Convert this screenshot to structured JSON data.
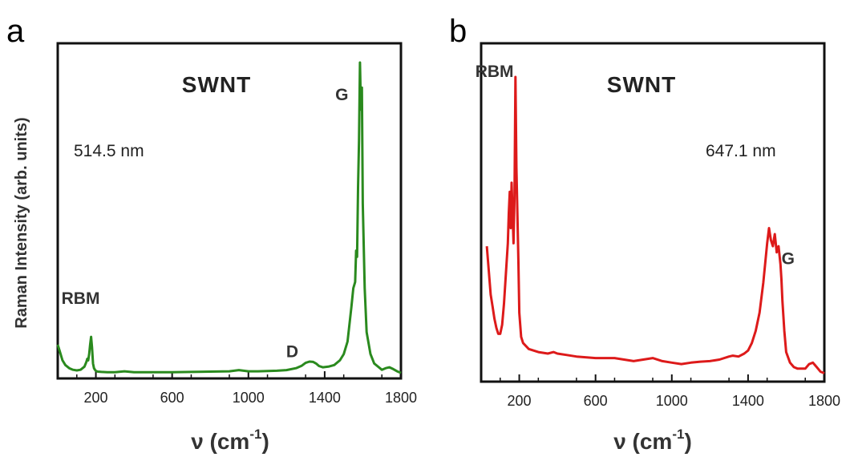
{
  "chart_data": [
    {
      "type": "line",
      "panel_label": "a",
      "title": "SWNT",
      "wavelength_label": "514.5 nm",
      "xlabel_symbol": "ν (cm",
      "xlabel_exp": "-1",
      "xlabel_close": ")",
      "ylabel": "Raman Intensity (arb. units)",
      "xlim": [
        0,
        1800
      ],
      "ylim": [
        0,
        100
      ],
      "xticks": [
        200,
        600,
        1000,
        1400,
        1800
      ],
      "color": "#2a8a1e",
      "annotations": [
        {
          "text": "RBM",
          "x": 120,
          "y": 23
        },
        {
          "text": "D",
          "x": 1230,
          "y": 6
        },
        {
          "text": "G",
          "x": 1490,
          "y": 88
        }
      ],
      "series": [
        {
          "x": [
            0,
            10,
            25,
            40,
            60,
            80,
            100,
            120,
            140,
            150,
            155,
            160,
            165,
            170,
            175,
            180,
            185,
            190,
            195,
            200,
            210,
            230,
            260,
            300,
            350,
            400,
            500,
            600,
            700,
            800,
            900,
            950,
            1000,
            1050,
            1100,
            1150,
            1200,
            1250,
            1280,
            1300,
            1320,
            1340,
            1355,
            1370,
            1390,
            1420,
            1450,
            1480,
            1500,
            1520,
            1540,
            1550,
            1560,
            1565,
            1570,
            1575,
            1580,
            1585,
            1590,
            1595,
            1600,
            1610,
            1620,
            1640,
            1660,
            1700,
            1720,
            1740,
            1760,
            1780,
            1800
          ],
          "y": [
            10,
            8,
            5,
            3.5,
            2.5,
            2,
            1.8,
            2,
            3,
            4.5,
            5.5,
            5,
            7,
            10,
            12.5,
            9,
            4,
            2.5,
            2,
            1.6,
            1.4,
            1.3,
            1.2,
            1.2,
            1.5,
            1.2,
            1.2,
            1.2,
            1.3,
            1.4,
            1.5,
            1.9,
            1.5,
            1.5,
            1.6,
            1.7,
            1.9,
            2.5,
            3.3,
            4.2,
            4.6,
            4.5,
            4,
            3.2,
            2.8,
            3,
            3.5,
            5,
            7,
            11,
            22,
            28,
            30,
            40,
            38,
            60,
            75,
            100,
            85,
            92,
            55,
            28,
            14,
            7,
            4,
            2,
            2.5,
            2.8,
            2.2,
            1.5,
            1
          ]
        }
      ]
    },
    {
      "type": "line",
      "panel_label": "b",
      "title": "SWNT",
      "wavelength_label": "647.1 nm",
      "xlabel_symbol": "ν (cm",
      "xlabel_exp": "-1",
      "xlabel_close": ")",
      "xlim": [
        0,
        1800
      ],
      "ylim": [
        0,
        100
      ],
      "xticks": [
        200,
        600,
        1000,
        1400,
        1800
      ],
      "color": "#dd1a1a",
      "annotations": [
        {
          "text": "RBM",
          "x": 70,
          "y": 100
        },
        {
          "text": "G",
          "x": 1610,
          "y": 38
        }
      ],
      "series": [
        {
          "x": [
            30,
            40,
            50,
            60,
            70,
            80,
            90,
            100,
            110,
            120,
            130,
            140,
            145,
            150,
            155,
            160,
            165,
            170,
            175,
            180,
            185,
            190,
            195,
            200,
            210,
            220,
            250,
            300,
            350,
            380,
            400,
            450,
            500,
            600,
            700,
            750,
            800,
            850,
            900,
            950,
            1000,
            1050,
            1100,
            1150,
            1200,
            1250,
            1300,
            1320,
            1350,
            1380,
            1400,
            1420,
            1440,
            1460,
            1480,
            1500,
            1510,
            1520,
            1530,
            1540,
            1550,
            1560,
            1570,
            1575,
            1580,
            1590,
            1600,
            1620,
            1640,
            1660,
            1700,
            1720,
            1740,
            1760,
            1780,
            1800
          ],
          "y": [
            44,
            36,
            28,
            24,
            20,
            17,
            15,
            15,
            18,
            25,
            35,
            45,
            55,
            62,
            50,
            65,
            55,
            45,
            60,
            100,
            70,
            55,
            40,
            22,
            14,
            12,
            10,
            9,
            8.5,
            9,
            8.5,
            8,
            7.5,
            7,
            7,
            6.5,
            6,
            6.5,
            7,
            6,
            5.5,
            5,
            5.5,
            5.8,
            6,
            6.5,
            7.5,
            7.8,
            7.5,
            8.5,
            9.5,
            12,
            16,
            22,
            32,
            45,
            50,
            46,
            44,
            48,
            42,
            44,
            38,
            33,
            26,
            16,
            9,
            5.5,
            4,
            3.5,
            3.5,
            5,
            5.5,
            4,
            2.5,
            2
          ]
        }
      ]
    }
  ]
}
